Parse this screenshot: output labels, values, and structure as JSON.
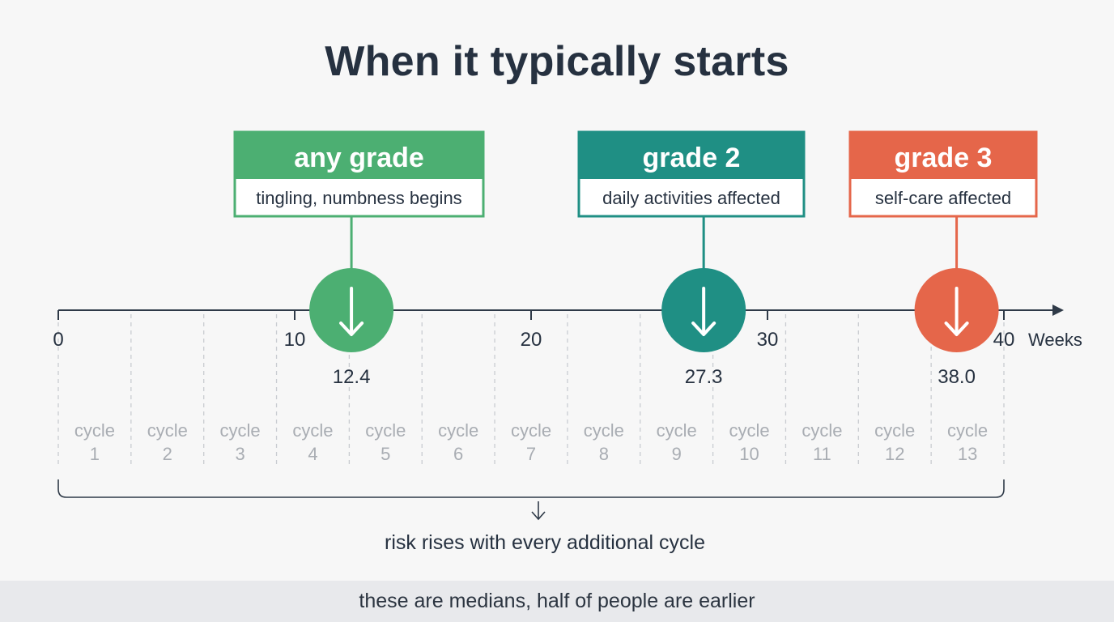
{
  "title": "When it typically starts",
  "axis": {
    "ticks": [
      {
        "value": 0,
        "label": "0"
      },
      {
        "value": 10,
        "label": "10"
      },
      {
        "value": 20,
        "label": "20"
      },
      {
        "value": 30,
        "label": "30"
      },
      {
        "value": 40,
        "label": "40"
      }
    ],
    "unit_label": "Weeks",
    "range": [
      0,
      40
    ]
  },
  "milestones": [
    {
      "grade": "any grade",
      "description": "tingling, numbness begins",
      "week": 12.4,
      "value_label": "12.4",
      "color": "#4caf72"
    },
    {
      "grade": "grade 2",
      "description": "daily activities affected",
      "week": 27.3,
      "value_label": "27.3",
      "color": "#1f8f84"
    },
    {
      "grade": "grade 3",
      "description": "self-care affected",
      "week": 38.0,
      "value_label": "38.0",
      "color": "#e5664a"
    }
  ],
  "cycles": [
    {
      "label": "cycle",
      "number": "1"
    },
    {
      "label": "cycle",
      "number": "2"
    },
    {
      "label": "cycle",
      "number": "3"
    },
    {
      "label": "cycle",
      "number": "4"
    },
    {
      "label": "cycle",
      "number": "5"
    },
    {
      "label": "cycle",
      "number": "6"
    },
    {
      "label": "cycle",
      "number": "7"
    },
    {
      "label": "cycle",
      "number": "8"
    },
    {
      "label": "cycle",
      "number": "9"
    },
    {
      "label": "cycle",
      "number": "10"
    },
    {
      "label": "cycle",
      "number": "11"
    },
    {
      "label": "cycle",
      "number": "12"
    },
    {
      "label": "cycle",
      "number": "13"
    }
  ],
  "bracket_caption": "risk rises with every additional cycle",
  "footer": "these are medians, half of people are earlier",
  "colors": {
    "axis": "#2f3a48",
    "text": "#263140",
    "muted": "#a9adb3",
    "divider": "#c9ccd1"
  }
}
